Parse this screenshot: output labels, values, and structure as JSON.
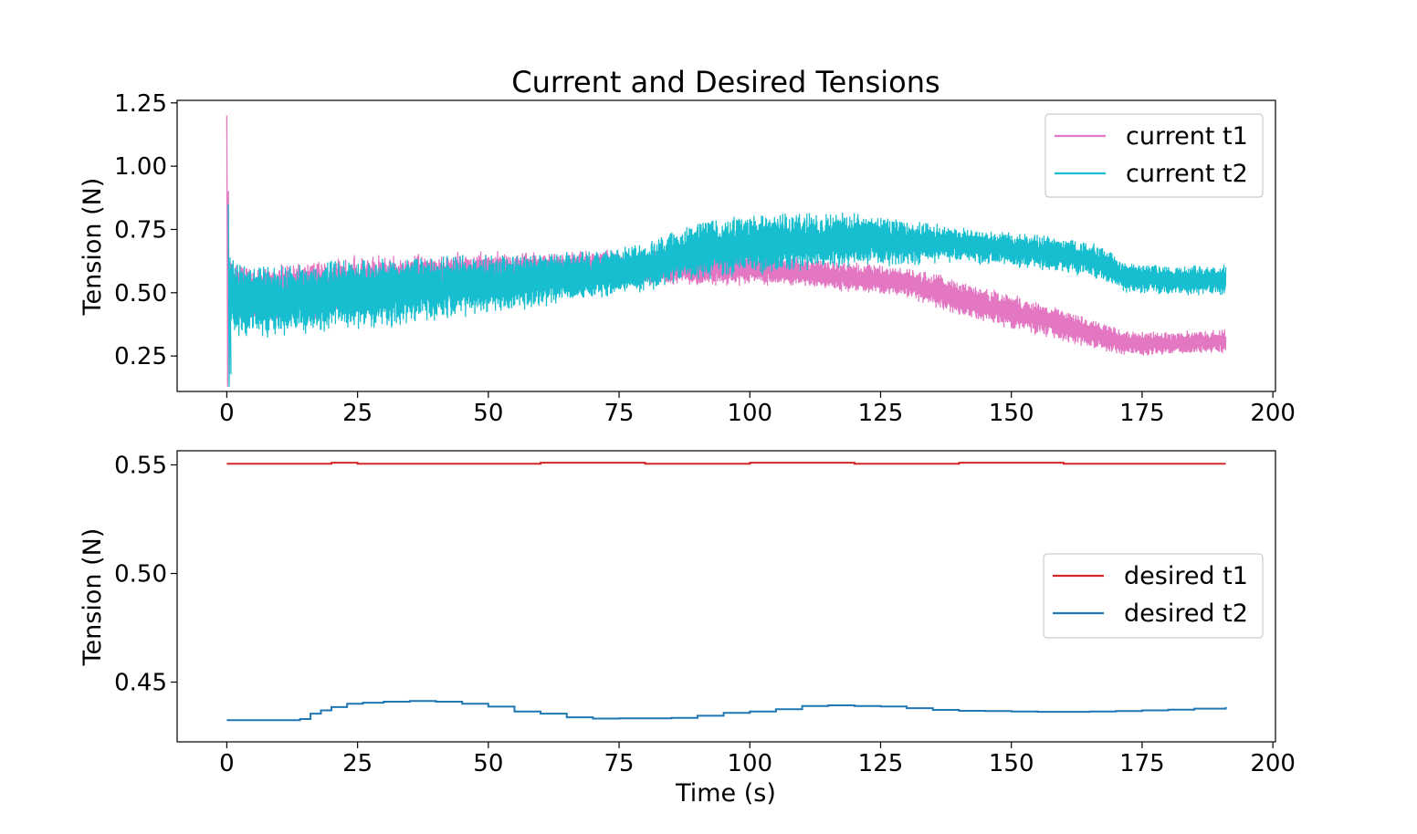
{
  "figure": {
    "title": "Current and Desired Tensions"
  },
  "chart_data": [
    {
      "type": "line",
      "title": "Current and Desired Tensions",
      "xlabel": "",
      "ylabel": "Tension (N)",
      "xlim": [
        -9.5,
        200.5
      ],
      "ylim": [
        0.11,
        1.26
      ],
      "xticks": [
        0,
        25,
        50,
        75,
        100,
        125,
        150,
        175,
        200
      ],
      "xtick_labels": [
        "0",
        "25",
        "50",
        "75",
        "100",
        "125",
        "150",
        "175",
        "200"
      ],
      "yticks": [
        0.25,
        0.5,
        0.75,
        1.0,
        1.25
      ],
      "ytick_labels": [
        "0.25",
        "0.50",
        "0.75",
        "1.00",
        "1.25"
      ],
      "grid": false,
      "legend_position": "top-right",
      "series": [
        {
          "name": "current t1",
          "color": "#e377c2",
          "style": "noisy-band",
          "x": [
            0,
            2,
            10,
            20,
            30,
            40,
            50,
            60,
            70,
            80,
            90,
            100,
            110,
            120,
            130,
            137,
            145,
            155,
            165,
            172,
            180,
            191
          ],
          "mean": [
            0.55,
            0.5,
            0.5,
            0.52,
            0.55,
            0.56,
            0.58,
            0.58,
            0.6,
            0.6,
            0.6,
            0.6,
            0.58,
            0.56,
            0.54,
            0.5,
            0.45,
            0.4,
            0.34,
            0.3,
            0.3,
            0.31
          ],
          "amplitude": [
            0.1,
            0.1,
            0.1,
            0.1,
            0.09,
            0.08,
            0.07,
            0.07,
            0.06,
            0.06,
            0.06,
            0.06,
            0.05,
            0.05,
            0.05,
            0.06,
            0.06,
            0.06,
            0.05,
            0.04,
            0.04,
            0.04
          ],
          "spike": {
            "x": 0,
            "y_max": 1.2,
            "y_min": 0.13
          }
        },
        {
          "name": "current t2",
          "color": "#17becf",
          "style": "noisy-band",
          "x": [
            0,
            2,
            10,
            20,
            30,
            40,
            50,
            60,
            70,
            80,
            85,
            90,
            100,
            110,
            120,
            130,
            140,
            150,
            160,
            167,
            172,
            180,
            191
          ],
          "mean": [
            0.48,
            0.47,
            0.47,
            0.49,
            0.5,
            0.52,
            0.53,
            0.55,
            0.57,
            0.6,
            0.64,
            0.67,
            0.69,
            0.7,
            0.71,
            0.7,
            0.69,
            0.67,
            0.65,
            0.62,
            0.56,
            0.55,
            0.55
          ],
          "amplitude": [
            0.13,
            0.13,
            0.13,
            0.12,
            0.12,
            0.11,
            0.1,
            0.09,
            0.08,
            0.08,
            0.09,
            0.1,
            0.1,
            0.1,
            0.09,
            0.08,
            0.06,
            0.06,
            0.06,
            0.06,
            0.05,
            0.05,
            0.05
          ],
          "spike": {
            "x": 0.3,
            "y_max": 0.85,
            "y_min": 0.13
          }
        }
      ]
    },
    {
      "type": "line",
      "title": "",
      "xlabel": "Time (s)",
      "ylabel": "Tension (N)",
      "xlim": [
        -9.5,
        200.5
      ],
      "ylim": [
        0.4225,
        0.5565
      ],
      "xticks": [
        0,
        25,
        50,
        75,
        100,
        125,
        150,
        175,
        200
      ],
      "xtick_labels": [
        "0",
        "25",
        "50",
        "75",
        "100",
        "125",
        "150",
        "175",
        "200"
      ],
      "yticks": [
        0.45,
        0.5,
        0.55
      ],
      "ytick_labels": [
        "0.45",
        "0.50",
        "0.55"
      ],
      "grid": false,
      "legend_position": "center-right",
      "series": [
        {
          "name": "desired t1",
          "color": "#d62728",
          "style": "step",
          "x": [
            0,
            10,
            20,
            25,
            40,
            60,
            80,
            100,
            120,
            140,
            160,
            191
          ],
          "y": [
            0.5505,
            0.5505,
            0.551,
            0.5505,
            0.5505,
            0.551,
            0.5505,
            0.551,
            0.5505,
            0.551,
            0.5505,
            0.5505
          ]
        },
        {
          "name": "desired t2",
          "color": "#1f77b4",
          "style": "step",
          "x": [
            0,
            10,
            14,
            16,
            18,
            20,
            23,
            26,
            30,
            35,
            40,
            45,
            50,
            55,
            60,
            65,
            70,
            75,
            80,
            85,
            90,
            95,
            100,
            105,
            110,
            115,
            120,
            125,
            130,
            135,
            140,
            145,
            150,
            155,
            160,
            165,
            170,
            175,
            180,
            185,
            191
          ],
          "y": [
            0.4325,
            0.4325,
            0.433,
            0.4355,
            0.437,
            0.4385,
            0.44,
            0.4405,
            0.441,
            0.4413,
            0.441,
            0.44,
            0.4387,
            0.4365,
            0.4355,
            0.4338,
            0.4332,
            0.4333,
            0.4333,
            0.4335,
            0.4345,
            0.4358,
            0.4365,
            0.4375,
            0.439,
            0.4393,
            0.439,
            0.4388,
            0.438,
            0.4372,
            0.4368,
            0.4367,
            0.4365,
            0.4363,
            0.4363,
            0.4365,
            0.4367,
            0.437,
            0.4373,
            0.4378,
            0.4385
          ]
        }
      ]
    }
  ]
}
